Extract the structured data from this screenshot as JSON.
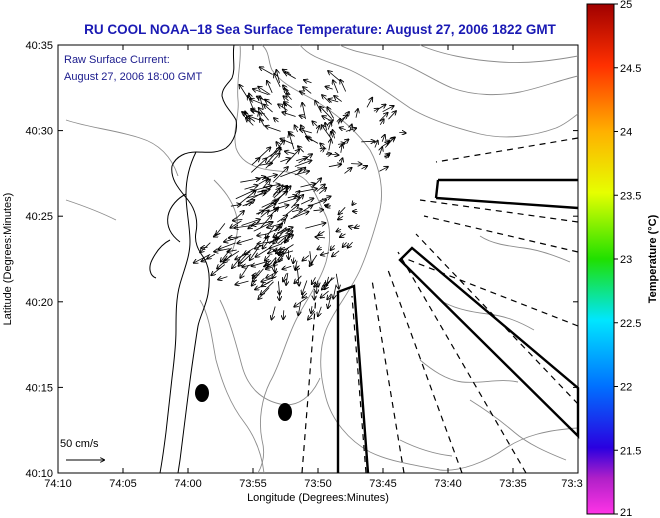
{
  "title": "RU COOL  NOAA–18  Sea Surface Temperature:  August 27, 2006 1822 GMT",
  "annotation": {
    "line1": "Raw Surface Current:",
    "line2": "August 27, 2006 18:00 GMT"
  },
  "scale_label": "50 cm/s",
  "axes": {
    "xlabel": "Longitude (Degrees:Minutes)",
    "ylabel": "Latitude (Degrees:Minutes)",
    "x_ticks": [
      "74:10",
      "74:05",
      "74:00",
      "73:55",
      "73:50",
      "73:45",
      "73:40",
      "73:35",
      "73:3"
    ],
    "y_ticks": [
      "40:35",
      "40:30",
      "40:25",
      "40:20",
      "40:15",
      "40:10"
    ]
  },
  "colorbar": {
    "label": "Temperature (°C)",
    "ticks": [
      "25",
      "24.5",
      "24",
      "23.5",
      "23",
      "22.5",
      "22",
      "21.5",
      "21"
    ],
    "min": 21,
    "max": 25
  },
  "colors": {
    "title": "#1a1ab4",
    "annotation": "#1a1a8c",
    "contour": "#8c8c8c",
    "coast": "#000000"
  },
  "icons": {
    "vectors": "current-vector-arrows",
    "markers": "black-dot-markers"
  }
}
